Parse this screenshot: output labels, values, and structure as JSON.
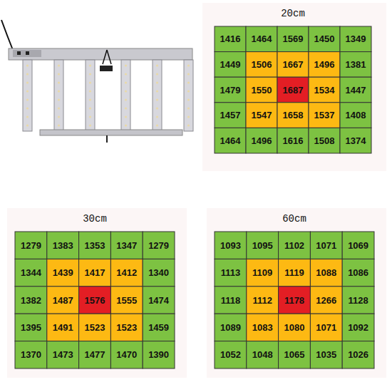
{
  "chart_data": [
    {
      "type": "heatmap",
      "title": "20cm",
      "tick_labels": false,
      "cells": [
        [
          1416,
          1464,
          1569,
          1450,
          1349
        ],
        [
          1449,
          1506,
          1667,
          1496,
          1381
        ],
        [
          1479,
          1550,
          1687,
          1534,
          1447
        ],
        [
          1457,
          1547,
          1658,
          1537,
          1408
        ],
        [
          1464,
          1496,
          1616,
          1508,
          1374
        ]
      ],
      "colors": [
        [
          "#7dc242",
          "#7dc242",
          "#7dc242",
          "#7dc242",
          "#7dc242"
        ],
        [
          "#7dc242",
          "#fdb913",
          "#fdb913",
          "#fdb913",
          "#7dc242"
        ],
        [
          "#7dc242",
          "#fdb913",
          "#e31e24",
          "#fdb913",
          "#7dc242"
        ],
        [
          "#7dc242",
          "#fdb913",
          "#fdb913",
          "#fdb913",
          "#7dc242"
        ],
        [
          "#7dc242",
          "#7dc242",
          "#7dc242",
          "#7dc242",
          "#7dc242"
        ]
      ]
    },
    {
      "type": "heatmap",
      "title": "30cm",
      "tick_labels": false,
      "cells": [
        [
          1279,
          1383,
          1353,
          1347,
          1279
        ],
        [
          1344,
          1439,
          1417,
          1412,
          1340
        ],
        [
          1382,
          1487,
          1576,
          1555,
          1474
        ],
        [
          1395,
          1491,
          1523,
          1523,
          1459
        ],
        [
          1370,
          1473,
          1477,
          1470,
          1390
        ]
      ],
      "colors": [
        [
          "#7dc242",
          "#7dc242",
          "#7dc242",
          "#7dc242",
          "#7dc242"
        ],
        [
          "#7dc242",
          "#fdb913",
          "#fdb913",
          "#fdb913",
          "#7dc242"
        ],
        [
          "#7dc242",
          "#fdb913",
          "#e31e24",
          "#fdb913",
          "#7dc242"
        ],
        [
          "#7dc242",
          "#fdb913",
          "#fdb913",
          "#fdb913",
          "#7dc242"
        ],
        [
          "#7dc242",
          "#7dc242",
          "#7dc242",
          "#7dc242",
          "#7dc242"
        ]
      ]
    },
    {
      "type": "heatmap",
      "title": "60cm",
      "tick_labels": false,
      "cells": [
        [
          1093,
          1095,
          1102,
          1071,
          1069
        ],
        [
          1113,
          1109,
          1119,
          1088,
          1086
        ],
        [
          1118,
          1112,
          1178,
          1266,
          1128
        ],
        [
          1089,
          1083,
          1080,
          1071,
          1092
        ],
        [
          1052,
          1048,
          1065,
          1035,
          1026
        ]
      ],
      "colors": [
        [
          "#7dc242",
          "#7dc242",
          "#7dc242",
          "#7dc242",
          "#7dc242"
        ],
        [
          "#7dc242",
          "#fdb913",
          "#fdb913",
          "#fdb913",
          "#7dc242"
        ],
        [
          "#7dc242",
          "#fdb913",
          "#e31e24",
          "#fdb913",
          "#7dc242"
        ],
        [
          "#7dc242",
          "#fdb913",
          "#fdb913",
          "#fdb913",
          "#7dc242"
        ],
        [
          "#7dc242",
          "#7dc242",
          "#7dc242",
          "#7dc242",
          "#7dc242"
        ]
      ]
    }
  ]
}
